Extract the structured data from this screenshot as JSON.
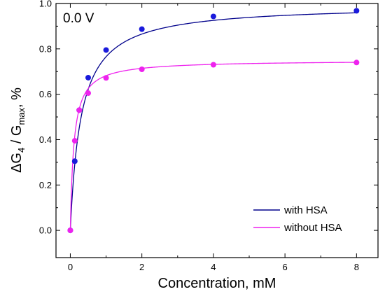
{
  "chart_data": {
    "type": "line",
    "title": "",
    "annotation": "0.0 V",
    "xlabel": "Concentration, mM",
    "ylabel_parts": {
      "delta": "ΔG",
      "sub1": "4",
      "mid": " / G",
      "sub2": "max",
      "suffix": ", %"
    },
    "xlim": [
      -0.4,
      8.6
    ],
    "ylim": [
      -0.12,
      1.0
    ],
    "x_ticks": [
      0,
      2,
      4,
      6,
      8
    ],
    "y_ticks": [
      0.0,
      0.2,
      0.4,
      0.6,
      0.8,
      1.0
    ],
    "x_tick_labels": [
      "0",
      "2",
      "4",
      "6",
      "8"
    ],
    "y_tick_labels": [
      "0.0",
      "0.2",
      "0.4",
      "0.6",
      "0.8",
      "1.0"
    ],
    "legend_position": "bottom-right",
    "series": [
      {
        "name": "with HSA",
        "color": "#00008B",
        "marker_color": "#1a1adc",
        "x": [
          0,
          0.125,
          0.25,
          0.5,
          1,
          2,
          4,
          8
        ],
        "y": [
          0.0,
          0.305,
          0.53,
          0.673,
          0.795,
          0.887,
          0.943,
          0.968
        ],
        "fit": {
          "ymax": 0.995,
          "k": 0.3
        }
      },
      {
        "name": "without HSA",
        "color": "#ee22ee",
        "marker_color": "#ee22ee",
        "x": [
          0,
          0.125,
          0.25,
          0.5,
          1,
          2,
          4,
          8
        ],
        "y": [
          0.0,
          0.395,
          0.53,
          0.605,
          0.672,
          0.71,
          0.73,
          0.74
        ],
        "fit": {
          "ymax": 0.75,
          "k": 0.1
        }
      }
    ]
  }
}
